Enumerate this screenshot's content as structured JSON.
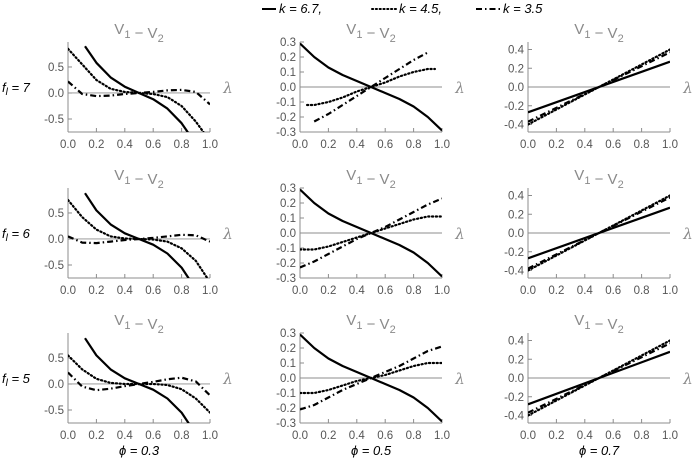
{
  "legend": {
    "items": [
      {
        "label": "k = 6.7,",
        "color": "#000000",
        "style": "solid"
      },
      {
        "label": "k = 4.5,",
        "color": "#000000",
        "style": "dotted"
      },
      {
        "label": "k = 3.5",
        "color": "#000000",
        "style": "dashdot"
      }
    ]
  },
  "row_labels": [
    "f_l = 7",
    "f_l = 6",
    "f_l = 5"
  ],
  "column_labels": [
    "ϕ = 0.3",
    "ϕ = 0.5",
    "ϕ = 0.7"
  ],
  "chart_data": [
    {
      "type": "line",
      "row": 0,
      "col": 0,
      "title": "V1 − V2",
      "xlabel": "λ",
      "ylabel": "",
      "xlim": [
        0,
        1
      ],
      "ylim": [
        -0.75,
        0.98
      ],
      "xticks": [
        "0.0",
        "0.2",
        "0.4",
        "0.6",
        "0.8",
        "1.0"
      ],
      "yticks": [
        0.5,
        0.0,
        -0.5
      ],
      "ytick_labels": [
        "0.5",
        "0.0",
        "-0.5"
      ],
      "series": [
        {
          "style": "solid",
          "x": [
            0.12,
            0.2,
            0.3,
            0.4,
            0.5,
            0.6,
            0.7,
            0.8,
            0.88
          ],
          "y": [
            0.9,
            0.58,
            0.3,
            0.12,
            0.0,
            -0.12,
            -0.3,
            -0.58,
            -0.9
          ]
        },
        {
          "style": "dotted",
          "x": [
            0.0,
            0.1,
            0.2,
            0.3,
            0.4,
            0.5,
            0.6,
            0.7,
            0.8,
            0.9,
            0.98
          ],
          "y": [
            0.85,
            0.55,
            0.25,
            0.08,
            0.02,
            0.0,
            -0.02,
            -0.08,
            -0.25,
            -0.55,
            -0.85
          ]
        },
        {
          "style": "dashdot",
          "x": [
            0.0,
            0.1,
            0.2,
            0.3,
            0.4,
            0.5,
            0.6,
            0.7,
            0.8,
            0.9,
            1.0
          ],
          "y": [
            0.22,
            -0.02,
            -0.06,
            -0.05,
            -0.02,
            0.0,
            0.02,
            0.05,
            0.06,
            0.02,
            -0.22
          ]
        }
      ]
    },
    {
      "type": "line",
      "row": 0,
      "col": 1,
      "title": "V1 − V2",
      "xlabel": "λ",
      "ylabel": "",
      "xlim": [
        0,
        1
      ],
      "ylim": [
        -0.3,
        0.3
      ],
      "xticks": [
        "0.0",
        "0.2",
        "0.4",
        "0.6",
        "0.8",
        "1.0"
      ],
      "yticks": [
        0.3,
        0.2,
        0.1,
        0.0,
        -0.1,
        -0.2,
        -0.3
      ],
      "ytick_labels": [
        "0.3",
        "0.2",
        "0.1",
        "0.0",
        "-0.1",
        "-0.2",
        "-0.3"
      ],
      "series": [
        {
          "style": "solid",
          "x": [
            0.0,
            0.1,
            0.2,
            0.3,
            0.4,
            0.5,
            0.6,
            0.7,
            0.8,
            0.9,
            1.0
          ],
          "y": [
            0.29,
            0.2,
            0.13,
            0.08,
            0.04,
            0.0,
            -0.04,
            -0.08,
            -0.13,
            -0.2,
            -0.29
          ]
        },
        {
          "style": "dotted",
          "x": [
            0.05,
            0.1,
            0.2,
            0.3,
            0.4,
            0.5,
            0.6,
            0.7,
            0.8,
            0.9,
            0.95
          ],
          "y": [
            -0.12,
            -0.12,
            -0.1,
            -0.07,
            -0.03,
            0.0,
            0.03,
            0.07,
            0.1,
            0.12,
            0.12
          ]
        },
        {
          "style": "dashdot",
          "x": [
            0.1,
            0.2,
            0.3,
            0.4,
            0.5,
            0.6,
            0.7,
            0.8,
            0.9
          ],
          "y": [
            -0.23,
            -0.18,
            -0.12,
            -0.06,
            0.0,
            0.06,
            0.12,
            0.18,
            0.23
          ]
        }
      ]
    },
    {
      "type": "line",
      "row": 0,
      "col": 2,
      "title": "V1 − V2",
      "xlabel": "λ",
      "ylabel": "",
      "xlim": [
        0,
        1
      ],
      "ylim": [
        -0.48,
        0.48
      ],
      "xticks": [
        "0.0",
        "0.2",
        "0.4",
        "0.6",
        "0.8",
        "1.0"
      ],
      "yticks": [
        0.4,
        0.2,
        0.0,
        -0.2,
        -0.4
      ],
      "ytick_labels": [
        "0.4",
        "0.2",
        "0.0",
        "-0.2",
        "-0.4"
      ],
      "series": [
        {
          "style": "solid",
          "x": [
            0.0,
            1.0
          ],
          "y": [
            -0.27,
            0.27
          ]
        },
        {
          "style": "dotted",
          "x": [
            0.0,
            1.0
          ],
          "y": [
            -0.4,
            0.4
          ]
        },
        {
          "style": "dashdot",
          "x": [
            0.0,
            1.0
          ],
          "y": [
            -0.37,
            0.37
          ]
        }
      ]
    },
    {
      "type": "line",
      "row": 1,
      "col": 0,
      "title": "V1 − V2",
      "xlabel": "λ",
      "ylabel": "",
      "xlim": [
        0,
        1
      ],
      "ylim": [
        -0.75,
        0.98
      ],
      "xticks": [
        "0.0",
        "0.2",
        "0.4",
        "0.6",
        "0.8",
        "1.0"
      ],
      "yticks": [
        0.5,
        0.0,
        -0.5
      ],
      "ytick_labels": [
        "0.5",
        "0.0",
        "-0.5"
      ],
      "series": [
        {
          "style": "solid",
          "x": [
            0.12,
            0.2,
            0.3,
            0.4,
            0.5,
            0.6,
            0.7,
            0.8,
            0.88
          ],
          "y": [
            0.88,
            0.55,
            0.28,
            0.11,
            0.0,
            -0.11,
            -0.28,
            -0.55,
            -0.88
          ]
        },
        {
          "style": "dotted",
          "x": [
            0.0,
            0.1,
            0.2,
            0.3,
            0.4,
            0.5,
            0.6,
            0.7,
            0.8,
            0.9,
            0.98
          ],
          "y": [
            0.75,
            0.42,
            0.18,
            0.05,
            0.01,
            0.0,
            -0.01,
            -0.05,
            -0.18,
            -0.42,
            -0.75
          ]
        },
        {
          "style": "dashdot",
          "x": [
            0.0,
            0.1,
            0.2,
            0.3,
            0.4,
            0.5,
            0.6,
            0.7,
            0.8,
            0.9,
            1.0
          ],
          "y": [
            0.05,
            -0.07,
            -0.08,
            -0.05,
            -0.02,
            0.0,
            0.02,
            0.05,
            0.08,
            0.07,
            -0.05
          ]
        }
      ]
    },
    {
      "type": "line",
      "row": 1,
      "col": 1,
      "title": "V1 − V2",
      "xlabel": "λ",
      "ylabel": "",
      "xlim": [
        0,
        1
      ],
      "ylim": [
        -0.3,
        0.3
      ],
      "xticks": [
        "0.0",
        "0.2",
        "0.4",
        "0.6",
        "0.8",
        "1.0"
      ],
      "yticks": [
        0.3,
        0.2,
        0.1,
        0.0,
        -0.1,
        -0.2,
        -0.3
      ],
      "ytick_labels": [
        "0.3",
        "0.2",
        "0.1",
        "0.0",
        "-0.1",
        "-0.2",
        "-0.3"
      ],
      "series": [
        {
          "style": "solid",
          "x": [
            0.0,
            0.1,
            0.2,
            0.3,
            0.4,
            0.5,
            0.6,
            0.7,
            0.8,
            0.9,
            1.0
          ],
          "y": [
            0.29,
            0.2,
            0.13,
            0.08,
            0.04,
            0.0,
            -0.04,
            -0.08,
            -0.13,
            -0.2,
            -0.29
          ]
        },
        {
          "style": "dotted",
          "x": [
            0.0,
            0.1,
            0.2,
            0.3,
            0.4,
            0.5,
            0.6,
            0.7,
            0.8,
            0.9,
            1.0
          ],
          "y": [
            -0.11,
            -0.11,
            -0.09,
            -0.06,
            -0.03,
            0.0,
            0.03,
            0.06,
            0.09,
            0.11,
            0.11
          ]
        },
        {
          "style": "dashdot",
          "x": [
            0.0,
            0.1,
            0.2,
            0.3,
            0.4,
            0.5,
            0.6,
            0.7,
            0.8,
            0.9,
            1.0
          ],
          "y": [
            -0.23,
            -0.19,
            -0.14,
            -0.09,
            -0.04,
            0.0,
            0.04,
            0.09,
            0.14,
            0.19,
            0.23
          ]
        }
      ]
    },
    {
      "type": "line",
      "row": 1,
      "col": 2,
      "title": "V1 − V2",
      "xlabel": "λ",
      "ylabel": "",
      "xlim": [
        0,
        1
      ],
      "ylim": [
        -0.48,
        0.48
      ],
      "xticks": [
        "0.0",
        "0.2",
        "0.4",
        "0.6",
        "0.8",
        "1.0"
      ],
      "yticks": [
        0.4,
        0.2,
        0.0,
        -0.2,
        -0.4
      ],
      "ytick_labels": [
        "0.4",
        "0.2",
        "0.0",
        "-0.2",
        "-0.4"
      ],
      "series": [
        {
          "style": "solid",
          "x": [
            0.0,
            1.0
          ],
          "y": [
            -0.27,
            0.27
          ]
        },
        {
          "style": "dotted",
          "x": [
            0.0,
            1.0
          ],
          "y": [
            -0.4,
            0.4
          ]
        },
        {
          "style": "dashdot",
          "x": [
            0.0,
            1.0
          ],
          "y": [
            -0.38,
            0.38
          ]
        }
      ]
    },
    {
      "type": "line",
      "row": 2,
      "col": 0,
      "title": "V1 − V2",
      "xlabel": "λ",
      "ylabel": "",
      "xlim": [
        0,
        1
      ],
      "ylim": [
        -0.75,
        0.98
      ],
      "xticks": [
        "0.0",
        "0.2",
        "0.4",
        "0.6",
        "0.8",
        "1.0"
      ],
      "yticks": [
        0.5,
        0.0,
        -0.5
      ],
      "ytick_labels": [
        "0.5",
        "0.0",
        "-0.5"
      ],
      "series": [
        {
          "style": "solid",
          "x": [
            0.12,
            0.2,
            0.3,
            0.4,
            0.5,
            0.6,
            0.7,
            0.8,
            0.88
          ],
          "y": [
            0.88,
            0.55,
            0.28,
            0.11,
            0.0,
            -0.11,
            -0.28,
            -0.55,
            -0.88
          ]
        },
        {
          "style": "dotted",
          "x": [
            0.0,
            0.1,
            0.2,
            0.3,
            0.4,
            0.5,
            0.6,
            0.7,
            0.8,
            0.9,
            1.0
          ],
          "y": [
            0.55,
            0.28,
            0.1,
            0.02,
            0.0,
            0.0,
            0.0,
            -0.02,
            -0.1,
            -0.28,
            -0.55
          ]
        },
        {
          "style": "dashdot",
          "x": [
            0.0,
            0.1,
            0.2,
            0.3,
            0.4,
            0.5,
            0.6,
            0.7,
            0.8,
            0.9,
            1.0
          ],
          "y": [
            0.22,
            -0.05,
            -0.12,
            -0.09,
            -0.04,
            0.0,
            0.04,
            0.09,
            0.12,
            0.05,
            -0.22
          ]
        }
      ]
    },
    {
      "type": "line",
      "row": 2,
      "col": 1,
      "title": "V1 − V2",
      "xlabel": "λ",
      "ylabel": "",
      "xlim": [
        0,
        1
      ],
      "ylim": [
        -0.3,
        0.3
      ],
      "xticks": [
        "0.0",
        "0.2",
        "0.4",
        "0.6",
        "0.8",
        "1.0"
      ],
      "yticks": [
        0.3,
        0.2,
        0.1,
        0.0,
        -0.1,
        -0.2,
        -0.3
      ],
      "ytick_labels": [
        "0.3",
        "0.2",
        "0.1",
        "0.0",
        "-0.1",
        "-0.2",
        "-0.3"
      ],
      "series": [
        {
          "style": "solid",
          "x": [
            0.0,
            0.1,
            0.2,
            0.3,
            0.4,
            0.5,
            0.6,
            0.7,
            0.8,
            0.9,
            1.0
          ],
          "y": [
            0.29,
            0.2,
            0.13,
            0.08,
            0.04,
            0.0,
            -0.04,
            -0.08,
            -0.13,
            -0.2,
            -0.29
          ]
        },
        {
          "style": "dotted",
          "x": [
            0.0,
            0.1,
            0.2,
            0.3,
            0.4,
            0.5,
            0.6,
            0.7,
            0.8,
            0.9,
            1.0
          ],
          "y": [
            -0.1,
            -0.1,
            -0.08,
            -0.05,
            -0.02,
            0.0,
            0.02,
            0.05,
            0.08,
            0.1,
            0.1
          ]
        },
        {
          "style": "dashdot",
          "x": [
            0.0,
            0.1,
            0.2,
            0.3,
            0.4,
            0.5,
            0.6,
            0.7,
            0.8,
            0.9,
            1.0
          ],
          "y": [
            -0.21,
            -0.18,
            -0.13,
            -0.08,
            -0.04,
            0.0,
            0.04,
            0.08,
            0.13,
            0.18,
            0.21
          ]
        }
      ]
    },
    {
      "type": "line",
      "row": 2,
      "col": 2,
      "title": "V1 − V2",
      "xlabel": "λ",
      "ylabel": "",
      "xlim": [
        0,
        1
      ],
      "ylim": [
        -0.48,
        0.48
      ],
      "xticks": [
        "0.0",
        "0.2",
        "0.4",
        "0.6",
        "0.8",
        "1.0"
      ],
      "yticks": [
        0.4,
        0.2,
        0.0,
        -0.2,
        -0.4
      ],
      "ytick_labels": [
        "0.4",
        "0.2",
        "0.0",
        "-0.2",
        "-0.4"
      ],
      "series": [
        {
          "style": "solid",
          "x": [
            0.0,
            1.0
          ],
          "y": [
            -0.28,
            0.28
          ]
        },
        {
          "style": "dotted",
          "x": [
            0.0,
            1.0
          ],
          "y": [
            -0.4,
            0.4
          ]
        },
        {
          "style": "dashdot",
          "x": [
            0.0,
            1.0
          ],
          "y": [
            -0.37,
            0.37
          ]
        }
      ]
    }
  ]
}
